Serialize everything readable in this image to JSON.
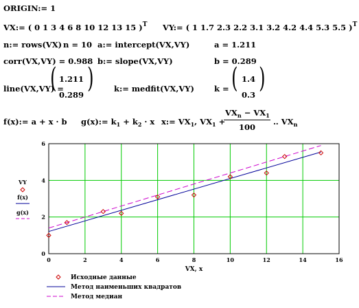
{
  "worksheet": {
    "origin_line": "ORIGIN:= 1",
    "vx_def": "VX:= ( 0  1  3  4  6  8  10  12  13  15 )",
    "vy_def": "VY:= ( 1  1.7  2.3  2.2  3.1  3.2  4.2  4.4  5.3  5.5 )",
    "transpose": "T",
    "n_def": "n:= rows(VX)",
    "n_val": "n = 10",
    "a_def": "a:= intercept(VX,VY)",
    "a_val": "a = 1.211",
    "corr_val": "corr(VX,VY) = 0.988",
    "b_def": "b:= slope(VX,VY)",
    "b_val": "b = 0.289",
    "line_label": "line(VX,VY) =",
    "line_top": "1.211",
    "line_bottom": "0.289",
    "k_def": "k:= medfit(VX,VY)",
    "k_label": "k =",
    "k_top": "1.4",
    "k_bottom": "0.3",
    "f_def": "f(x):= a + x · b",
    "g_def_main": "g(x):= k",
    "g_sub1": "1",
    "g_def_mid": " + k",
    "g_sub2": "2",
    "g_def_end": " · x",
    "x_def_a": "x:= VX",
    "x_sub1": "1",
    "x_def_b": ", VX",
    "x_sub2": "1",
    "x_def_c": " +",
    "x_num": "VX",
    "x_num_sub_n": "n",
    "x_num_minus": " − VX",
    "x_num_sub_1": "1",
    "x_den": "100",
    "x_def_d": "‥ VX",
    "x_sub3": "n"
  },
  "chart_data": {
    "type": "scatter",
    "x_values": [
      0,
      1,
      3,
      4,
      6,
      8,
      10,
      12,
      13,
      15
    ],
    "series": [
      {
        "name": "VY",
        "kind": "points",
        "values": [
          1,
          1.7,
          2.3,
          2.2,
          3.1,
          3.2,
          4.2,
          4.4,
          5.3,
          5.5
        ],
        "color": "#cc0000"
      },
      {
        "name": "f(x)",
        "kind": "line",
        "intercept": 1.211,
        "slope": 0.289,
        "color": "#000099"
      },
      {
        "name": "g(x)",
        "kind": "line",
        "intercept": 1.4,
        "slope": 0.3,
        "color": "#cc00cc"
      }
    ],
    "xlim": [
      0,
      16
    ],
    "ylim": [
      0,
      6
    ],
    "x_ticks": [
      "0",
      "2",
      "4",
      "6",
      "8",
      "10",
      "12",
      "14",
      "16"
    ],
    "y_ticks": [
      "0",
      "2",
      "4",
      "6"
    ],
    "xlabel": "VX, x",
    "ylabel_lines": [
      "VY",
      "f(x)",
      "g(x)"
    ],
    "grid": true,
    "grid_color": "#00cc00",
    "legend": [
      {
        "label": "Исходные данные",
        "kind": "marker",
        "color": "#cc0000"
      },
      {
        "label": "Метод наименьших квадратов",
        "kind": "solid",
        "color": "#000099"
      },
      {
        "label": "Метод медиан",
        "kind": "dashed",
        "color": "#cc00cc"
      }
    ]
  }
}
